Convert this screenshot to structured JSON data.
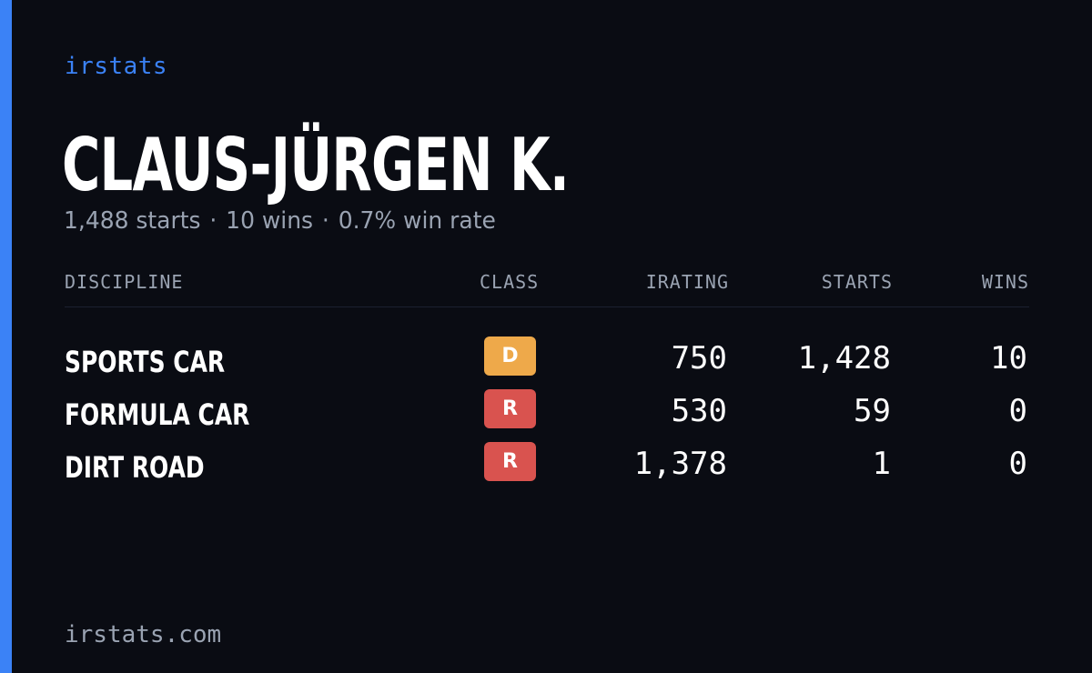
{
  "brand": "irstats",
  "driver": {
    "name": "CLAUS-JÜRGEN K.",
    "summary": {
      "starts": "1,488 starts",
      "wins": "10 wins",
      "win_rate": "0.7% win rate",
      "separator": "·"
    }
  },
  "table": {
    "headers": {
      "discipline": "DISCIPLINE",
      "class": "CLASS",
      "irating": "IRATING",
      "starts": "STARTS",
      "wins": "WINS"
    },
    "rows": [
      {
        "discipline": "SPORTS CAR",
        "class": "D",
        "class_color": "#eea94a",
        "irating": "750",
        "starts": "1,428",
        "wins": "10"
      },
      {
        "discipline": "FORMULA CAR",
        "class": "R",
        "class_color": "#d9534f",
        "irating": "530",
        "starts": "59",
        "wins": "0"
      },
      {
        "discipline": "DIRT ROAD",
        "class": "R",
        "class_color": "#d9534f",
        "irating": "1,378",
        "starts": "1",
        "wins": "0"
      }
    ]
  },
  "footer": "irstats.com",
  "colors": {
    "accent": "#3b82f6",
    "background": "#0a0c13",
    "muted_text": "#9aa3b2"
  }
}
